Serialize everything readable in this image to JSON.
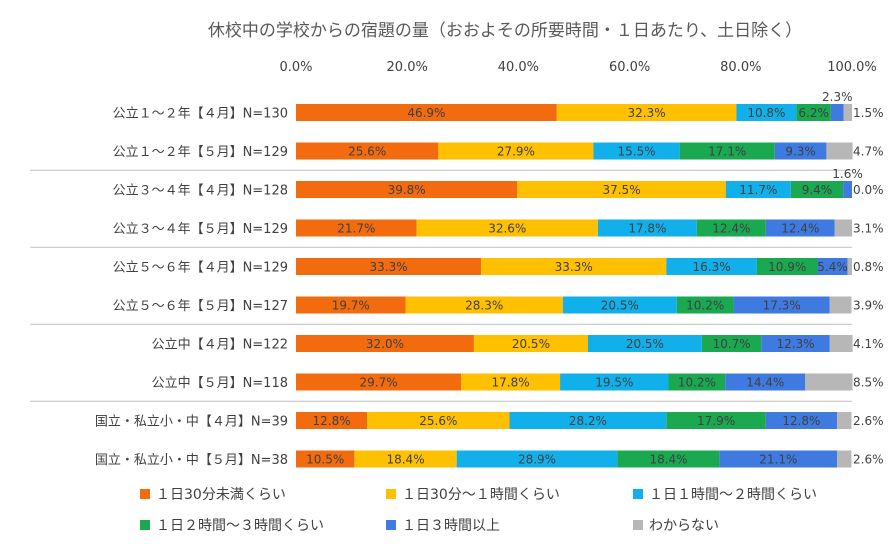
{
  "chart_data": {
    "type": "bar",
    "orientation": "horizontal",
    "stacked": true,
    "title": "休校中の学校からの宿題の量（おおよその所要時間・１日あたり、土日除く）",
    "xlabel": "",
    "ylabel": "",
    "xlim": [
      0,
      100
    ],
    "x_ticks": [
      "0.0%",
      "20.0%",
      "40.0%",
      "60.0%",
      "80.0%",
      "100.0%"
    ],
    "grid": false,
    "legend_position": "bottom",
    "categories": [
      "公立１～２年【４月】N=130",
      "公立１～２年【５月】N=129",
      "公立３～４年【４月】N=128",
      "公立３～４年【５月】N=129",
      "公立５～６年【４月】N=129",
      "公立５～６年【５月】N=127",
      "公立中【４月】N=122",
      "公立中【５月】N=118",
      "国立・私立小・中【４月】N=39",
      "国立・私立小・中【５月】N=38"
    ],
    "series": [
      {
        "name": "１日30分未満くらい",
        "color": "#F26B0F",
        "values": [
          46.9,
          25.6,
          39.8,
          21.7,
          33.3,
          19.7,
          32.0,
          29.7,
          12.8,
          10.5
        ],
        "labels": [
          "46.9%",
          "25.6%",
          "39.8%",
          "21.7%",
          "33.3%",
          "19.7%",
          "32.0%",
          "29.7%",
          "12.8%",
          "10.5%"
        ]
      },
      {
        "name": "１日30分～１時間くらい",
        "color": "#FFC000",
        "values": [
          32.3,
          27.9,
          37.5,
          32.6,
          33.3,
          28.3,
          20.5,
          17.8,
          25.6,
          18.4
        ],
        "labels": [
          "32.3%",
          "27.9%",
          "37.5%",
          "32.6%",
          "33.3%",
          "28.3%",
          "20.5%",
          "17.8%",
          "25.6%",
          "18.4%"
        ]
      },
      {
        "name": "１日１時間～２時間くらい",
        "color": "#12B0EA",
        "values": [
          10.8,
          15.5,
          11.7,
          17.8,
          16.3,
          20.5,
          20.5,
          19.5,
          28.2,
          28.9
        ],
        "labels": [
          "10.8%",
          "15.5%",
          "11.7%",
          "17.8%",
          "16.3%",
          "20.5%",
          "20.5%",
          "19.5%",
          "28.2%",
          "28.9%"
        ]
      },
      {
        "name": "１日２時間～３時間くらい",
        "color": "#1AA851",
        "values": [
          6.2,
          17.1,
          9.4,
          12.4,
          10.9,
          10.2,
          10.7,
          10.2,
          17.9,
          18.4
        ],
        "labels": [
          "6.2%",
          "17.1%",
          "9.4%",
          "12.4%",
          "10.9%",
          "10.2%",
          "10.7%",
          "10.2%",
          "17.9%",
          "18.4%"
        ]
      },
      {
        "name": "１日３時間以上",
        "color": "#3F7AE0",
        "values": [
          2.3,
          9.3,
          1.6,
          12.4,
          5.4,
          17.3,
          12.3,
          14.4,
          12.8,
          21.1
        ],
        "labels": [
          "2.3%",
          "9.3%",
          "1.6%",
          "12.4%",
          "5.4%",
          "17.3%",
          "12.3%",
          "14.4%",
          "12.8%",
          "21.1%"
        ]
      },
      {
        "name": "わからない",
        "color": "#B7B7B7",
        "values": [
          1.5,
          4.7,
          0.0,
          3.1,
          0.8,
          3.9,
          4.1,
          8.5,
          2.6,
          2.6
        ],
        "labels": [
          "1.5%",
          "4.7%",
          "0.0%",
          "3.1%",
          "0.8%",
          "3.9%",
          "4.1%",
          "8.5%",
          "2.6%",
          "2.6%"
        ]
      }
    ]
  }
}
